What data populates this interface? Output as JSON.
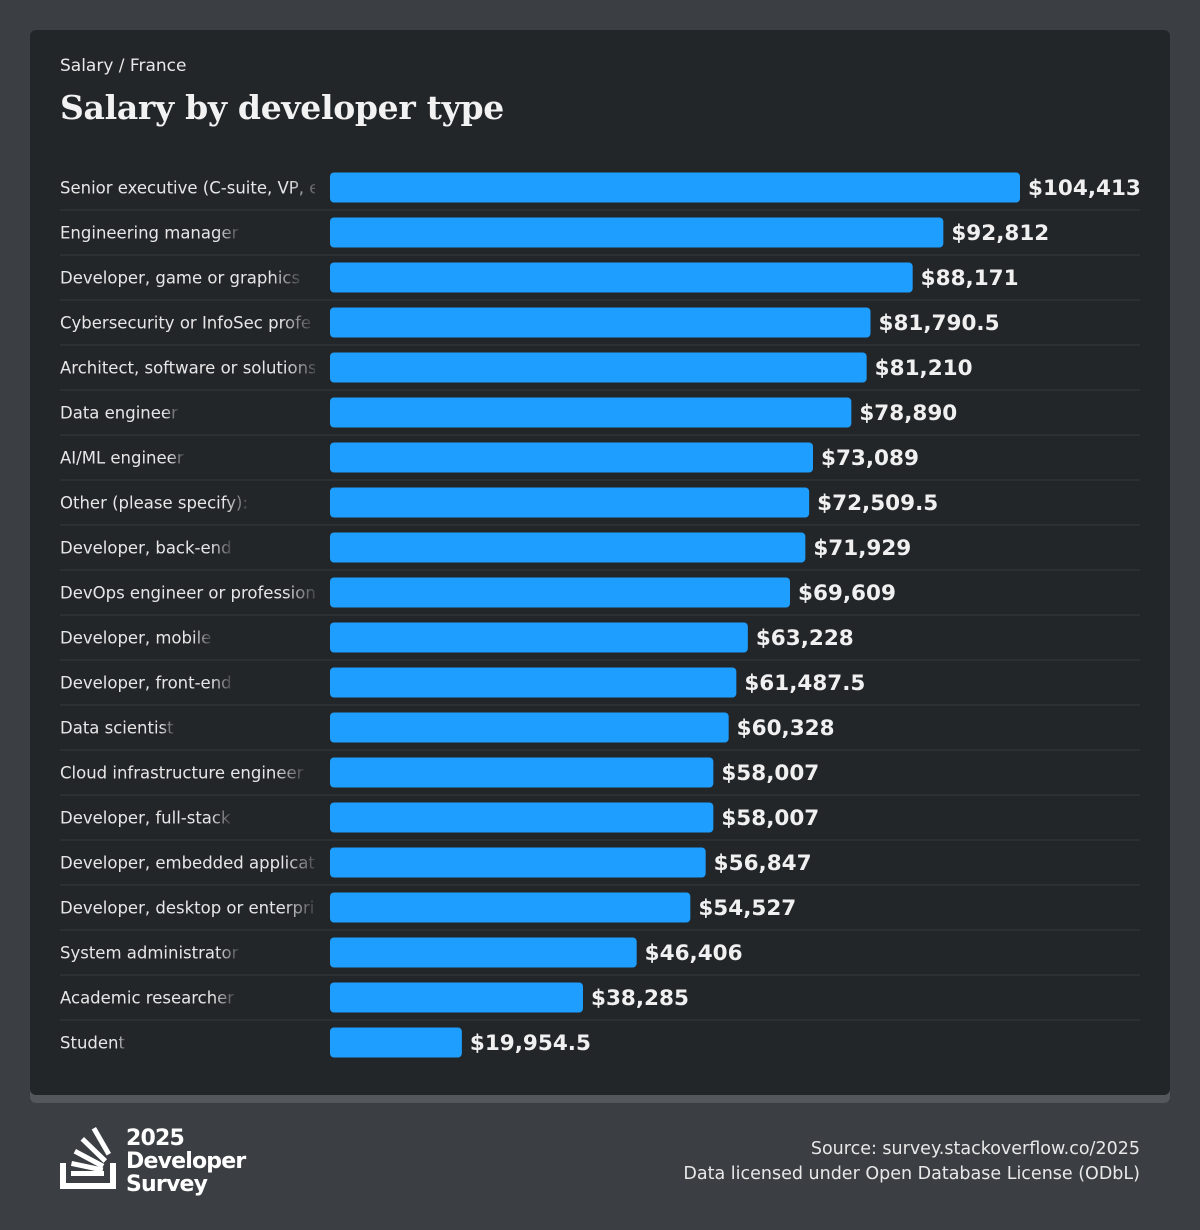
{
  "header": {
    "breadcrumb": "Salary / France",
    "title": "Salary by developer type"
  },
  "colors": {
    "bar": "#1e9eff",
    "card_bg": "#232629",
    "page_bg": "#3b3f43",
    "label_text": "#e6e6e6",
    "value_text": "#f0f0f0",
    "row_divider": "#2f3337"
  },
  "chart_data": {
    "type": "bar",
    "orientation": "horizontal",
    "title": "Salary by developer type",
    "subtitle": "Salary / France",
    "xlabel": "",
    "ylabel": "",
    "value_prefix": "$",
    "grid": false,
    "legend": "none",
    "categories": [
      "Senior executive (C-suite, VP, etc.)",
      "Engineering manager",
      "Developer, game or graphics",
      "Cybersecurity or InfoSec professional",
      "Architect, software or solutions",
      "Data engineer",
      "AI/ML engineer",
      "Other (please specify):",
      "Developer, back-end",
      "DevOps engineer or professional",
      "Developer, mobile",
      "Developer, front-end",
      "Data scientist",
      "Cloud infrastructure engineer",
      "Developer, full-stack",
      "Developer, embedded applications or devices",
      "Developer, desktop or enterprise applications",
      "System administrator",
      "Academic researcher",
      "Student"
    ],
    "display_labels": [
      "Senior executive (C-suite, VP, e",
      "Engineering manager",
      "Developer, game or graphics",
      "Cybersecurity or InfoSec profe",
      "Architect, software or solutions",
      "Data engineer",
      "AI/ML engineer",
      "Other (please specify):",
      "Developer, back-end",
      "DevOps engineer or profession",
      "Developer, mobile",
      "Developer, front-end",
      "Data scientist",
      "Cloud infrastructure engineer",
      "Developer, full-stack",
      "Developer, embedded applicat",
      "Developer, desktop or enterpri",
      "System administrator",
      "Academic researcher",
      "Student"
    ],
    "values": [
      104413,
      92812,
      88171,
      81790.5,
      81210,
      78890,
      73089,
      72509.5,
      71929,
      69609,
      63228,
      61487.5,
      60328,
      58007,
      58007,
      56847,
      54527,
      46406,
      38285,
      19954.5
    ],
    "value_labels": [
      "$104,413",
      "$92,812",
      "$88,171",
      "$81,790.5",
      "$81,210",
      "$78,890",
      "$73,089",
      "$72,509.5",
      "$71,929",
      "$69,609",
      "$63,228",
      "$61,487.5",
      "$60,328",
      "$58,007",
      "$58,007",
      "$56,847",
      "$54,527",
      "$46,406",
      "$38,285",
      "$19,954.5"
    ],
    "xlim": [
      0,
      104413
    ]
  },
  "footer": {
    "logo_lines": [
      "2025",
      "Developer",
      "Survey"
    ],
    "logo_icon": "stack-overflow-icon",
    "source": "Source: survey.stackoverflow.co/2025",
    "license": "Data licensed under Open Database License (ODbL)"
  }
}
